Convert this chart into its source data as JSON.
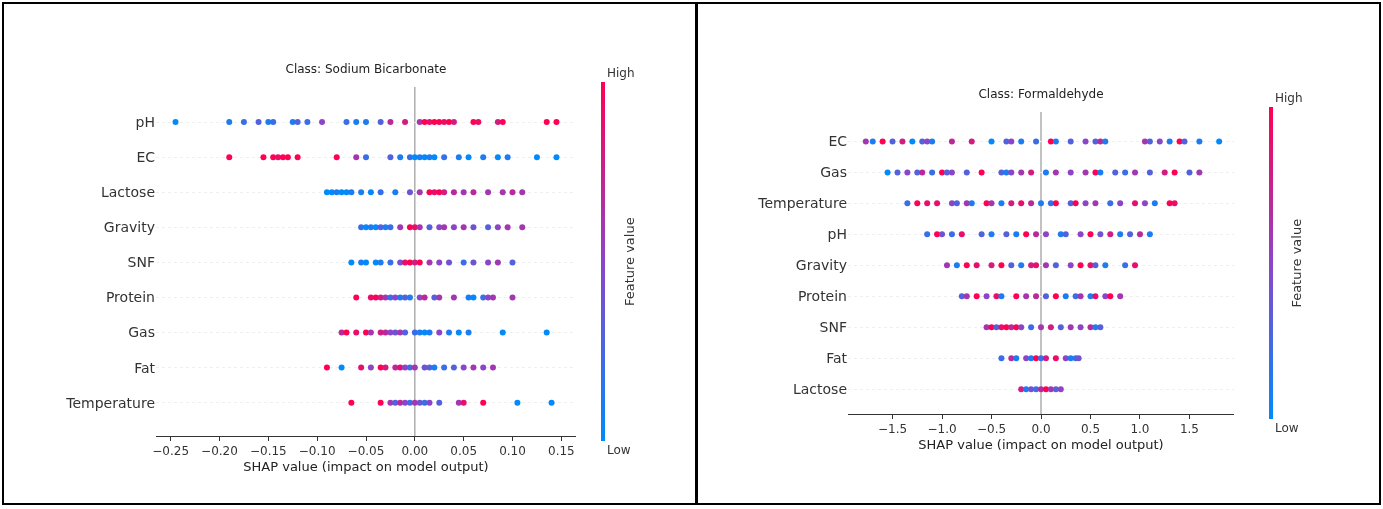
{
  "chart_data": [
    {
      "type": "scatter",
      "orientation": "horizontal",
      "title": "Class: Sodium Bicarbonate",
      "xlabel": "SHAP value (impact on model output)",
      "clabel": "Feature value",
      "annotations": [
        "High",
        "Low"
      ],
      "marker": "circle",
      "grid": "y",
      "xlim": [
        -0.265,
        0.165
      ],
      "xticks": [
        {
          "value": -0.25,
          "label": "−0.25"
        },
        {
          "value": -0.2,
          "label": "−0.20"
        },
        {
          "value": -0.15,
          "label": "−0.15"
        },
        {
          "value": -0.1,
          "label": "−0.10"
        },
        {
          "value": -0.05,
          "label": "−0.05"
        },
        {
          "value": 0,
          "label": "0.00"
        },
        {
          "value": 0.05,
          "label": "0.05"
        },
        {
          "value": 0.1,
          "label": "0.10"
        },
        {
          "value": 0.15,
          "label": "0.15"
        }
      ],
      "ref_lines": [
        {
          "axis": "x",
          "value": 0,
          "color": "#999999"
        }
      ],
      "categories": [
        "pH",
        "EC",
        "Lactose",
        "Gravity",
        "SNF",
        "Protein",
        "Gas",
        "Fat",
        "Temperature"
      ],
      "series": [
        {
          "x": [
            "pH",
            "pH",
            "pH",
            "pH",
            "pH",
            "pH",
            "pH",
            "pH",
            "pH",
            "pH",
            "pH",
            "pH",
            "pH",
            "pH",
            "pH",
            "pH",
            "pH",
            "pH",
            "pH",
            "pH",
            "pH",
            "pH",
            "pH",
            "pH",
            "pH",
            "pH",
            "pH",
            "pH",
            "pH",
            "pH"
          ],
          "values": [
            -0.245,
            -0.19,
            -0.175,
            -0.16,
            -0.15,
            -0.145,
            -0.125,
            -0.12,
            -0.11,
            -0.095,
            -0.07,
            -0.06,
            -0.05,
            -0.035,
            -0.025,
            -0.01,
            0.005,
            0.01,
            0.015,
            0.02,
            0.025,
            0.03,
            0.035,
            0.04,
            0.06,
            0.065,
            0.085,
            0.09,
            0.135,
            0.145
          ],
          "colors": [
            "#008afb",
            "#1c7cf1",
            "#386ee7",
            "#5461dc",
            "#1c7cf1",
            "#386ee7",
            "#1c7cf1",
            "#5461dc",
            "#386ee7",
            "#8c45c8",
            "#386ee7",
            "#1c7cf1",
            "#1c7cf1",
            "#5461dc",
            "#ba2999",
            "#d11c81",
            "#a337b0",
            "#ff0052",
            "#e80e6a",
            "#ff0052",
            "#ff0052",
            "#e80e6a",
            "#ff0052",
            "#d11c81",
            "#ff0052",
            "#e80e6a",
            "#d11c81",
            "#ff0052",
            "#ff0052",
            "#ff0052"
          ]
        },
        {
          "x": [
            "EC",
            "EC",
            "EC",
            "EC",
            "EC",
            "EC",
            "EC",
            "EC",
            "EC",
            "EC",
            "EC",
            "EC",
            "EC",
            "EC",
            "EC",
            "EC",
            "EC",
            "EC",
            "EC",
            "EC",
            "EC",
            "EC",
            "EC",
            "EC",
            "EC",
            "EC"
          ],
          "values": [
            -0.19,
            -0.155,
            -0.145,
            -0.14,
            -0.135,
            -0.13,
            -0.12,
            -0.08,
            -0.06,
            -0.05,
            -0.025,
            -0.015,
            -0.005,
            0,
            0.005,
            0.01,
            0.015,
            0.02,
            0.03,
            0.045,
            0.055,
            0.07,
            0.085,
            0.095,
            0.125,
            0.145
          ],
          "colors": [
            "#ff0052",
            "#ff0052",
            "#ff0052",
            "#e80e6a",
            "#ff0052",
            "#ff0052",
            "#ff0052",
            "#ff0052",
            "#a337b0",
            "#386ee7",
            "#5461dc",
            "#1c7cf1",
            "#386ee7",
            "#008afb",
            "#1c7cf1",
            "#008afb",
            "#1c7cf1",
            "#008afb",
            "#386ee7",
            "#1c7cf1",
            "#008afb",
            "#1c7cf1",
            "#008afb",
            "#1c7cf1",
            "#008afb",
            "#008afb"
          ]
        },
        {
          "x": [
            "Lactose",
            "Lactose",
            "Lactose",
            "Lactose",
            "Lactose",
            "Lactose",
            "Lactose",
            "Lactose",
            "Lactose",
            "Lactose",
            "Lactose",
            "Lactose",
            "Lactose",
            "Lactose",
            "Lactose",
            "Lactose",
            "Lactose",
            "Lactose",
            "Lactose",
            "Lactose",
            "Lactose",
            "Lactose",
            "Lactose"
          ],
          "values": [
            -0.09,
            -0.085,
            -0.08,
            -0.075,
            -0.07,
            -0.065,
            -0.055,
            -0.045,
            -0.035,
            -0.02,
            -0.005,
            0.005,
            0.015,
            0.02,
            0.025,
            0.03,
            0.04,
            0.05,
            0.06,
            0.075,
            0.09,
            0.1,
            0.11
          ],
          "colors": [
            "#008afb",
            "#008afb",
            "#1c7cf1",
            "#008afb",
            "#008afb",
            "#1c7cf1",
            "#1c7cf1",
            "#008afb",
            "#386ee7",
            "#1c7cf1",
            "#7053d2",
            "#a337b0",
            "#ff0052",
            "#e80e6a",
            "#ff0052",
            "#d11c81",
            "#ba2999",
            "#a337b0",
            "#ba2999",
            "#a337b0",
            "#a337b0",
            "#ba2999",
            "#a337b0"
          ]
        },
        {
          "x": [
            "Gravity",
            "Gravity",
            "Gravity",
            "Gravity",
            "Gravity",
            "Gravity",
            "Gravity",
            "Gravity",
            "Gravity",
            "Gravity",
            "Gravity",
            "Gravity",
            "Gravity",
            "Gravity",
            "Gravity",
            "Gravity",
            "Gravity",
            "Gravity",
            "Gravity",
            "Gravity",
            "Gravity"
          ],
          "values": [
            -0.055,
            -0.05,
            -0.045,
            -0.04,
            -0.035,
            -0.03,
            -0.025,
            -0.015,
            -0.005,
            0,
            0.005,
            0.015,
            0.025,
            0.03,
            0.04,
            0.05,
            0.06,
            0.075,
            0.085,
            0.095,
            0.11
          ],
          "colors": [
            "#386ee7",
            "#008afb",
            "#1c7cf1",
            "#008afb",
            "#5461dc",
            "#1c7cf1",
            "#386ee7",
            "#a337b0",
            "#ff0052",
            "#e80e6a",
            "#a337b0",
            "#5461dc",
            "#8c45c8",
            "#a337b0",
            "#8c45c8",
            "#a337b0",
            "#7053d2",
            "#5461dc",
            "#8c45c8",
            "#a337b0",
            "#a337b0"
          ]
        },
        {
          "x": [
            "SNF",
            "SNF",
            "SNF",
            "SNF",
            "SNF",
            "SNF",
            "SNF",
            "SNF",
            "SNF",
            "SNF",
            "SNF",
            "SNF",
            "SNF",
            "SNF",
            "SNF",
            "SNF",
            "SNF",
            "SNF",
            "SNF"
          ],
          "values": [
            -0.065,
            -0.055,
            -0.05,
            -0.04,
            -0.035,
            -0.025,
            -0.015,
            -0.01,
            -0.005,
            0,
            0.005,
            0.015,
            0.025,
            0.035,
            0.05,
            0.06,
            0.075,
            0.085,
            0.1
          ],
          "colors": [
            "#008afb",
            "#1c7cf1",
            "#008afb",
            "#008afb",
            "#1c7cf1",
            "#386ee7",
            "#7053d2",
            "#e80e6a",
            "#ff0052",
            "#d11c81",
            "#ff0052",
            "#a337b0",
            "#8c45c8",
            "#7053d2",
            "#386ee7",
            "#7053d2",
            "#8c45c8",
            "#a337b0",
            "#5461dc"
          ]
        },
        {
          "x": [
            "Protein",
            "Protein",
            "Protein",
            "Protein",
            "Protein",
            "Protein",
            "Protein",
            "Protein",
            "Protein",
            "Protein",
            "Protein",
            "Protein",
            "Protein",
            "Protein",
            "Protein",
            "Protein",
            "Protein",
            "Protein",
            "Protein",
            "Protein",
            "Protein"
          ],
          "values": [
            -0.06,
            -0.045,
            -0.04,
            -0.035,
            -0.03,
            -0.025,
            -0.02,
            -0.015,
            -0.01,
            -0.005,
            0.005,
            0.01,
            0.02,
            0.025,
            0.04,
            0.055,
            0.06,
            0.07,
            0.075,
            0.08,
            0.1
          ],
          "colors": [
            "#ff0052",
            "#e80e6a",
            "#ff0052",
            "#d11c81",
            "#a337b0",
            "#386ee7",
            "#8c45c8",
            "#1c7cf1",
            "#5461dc",
            "#1c7cf1",
            "#8c45c8",
            "#ba2999",
            "#5461dc",
            "#a337b0",
            "#a337b0",
            "#1c7cf1",
            "#008afb",
            "#386ee7",
            "#8c45c8",
            "#a337b0",
            "#a337b0"
          ]
        },
        {
          "x": [
            "Gas",
            "Gas",
            "Gas",
            "Gas",
            "Gas",
            "Gas",
            "Gas",
            "Gas",
            "Gas",
            "Gas",
            "Gas",
            "Gas",
            "Gas",
            "Gas",
            "Gas",
            "Gas",
            "Gas",
            "Gas",
            "Gas",
            "Gas",
            "Gas"
          ],
          "values": [
            -0.075,
            -0.07,
            -0.06,
            -0.05,
            -0.045,
            -0.035,
            -0.03,
            -0.025,
            -0.02,
            -0.015,
            -0.01,
            0,
            0.005,
            0.01,
            0.015,
            0.025,
            0.035,
            0.045,
            0.055,
            0.09,
            0.135
          ],
          "colors": [
            "#ba2999",
            "#ff0052",
            "#e80e6a",
            "#ff0052",
            "#a337b0",
            "#d11c81",
            "#ba2999",
            "#8c45c8",
            "#7053d2",
            "#a337b0",
            "#5461dc",
            "#386ee7",
            "#1c7cf1",
            "#008afb",
            "#1c7cf1",
            "#8c45c8",
            "#1c7cf1",
            "#008afb",
            "#1c7cf1",
            "#008afb",
            "#008afb"
          ]
        },
        {
          "x": [
            "Fat",
            "Fat",
            "Fat",
            "Fat",
            "Fat",
            "Fat",
            "Fat",
            "Fat",
            "Fat",
            "Fat",
            "Fat",
            "Fat",
            "Fat",
            "Fat",
            "Fat",
            "Fat",
            "Fat",
            "Fat",
            "Fat",
            "Fat"
          ],
          "values": [
            -0.09,
            -0.075,
            -0.055,
            -0.045,
            -0.035,
            -0.03,
            -0.02,
            -0.015,
            -0.01,
            -0.005,
            0,
            0.01,
            0.015,
            0.02,
            0.03,
            0.04,
            0.05,
            0.06,
            0.07,
            0.08
          ],
          "colors": [
            "#ff0052",
            "#008afb",
            "#e80e6a",
            "#8c45c8",
            "#ff0052",
            "#d11c81",
            "#ba2999",
            "#e80e6a",
            "#8c45c8",
            "#386ee7",
            "#a337b0",
            "#7053d2",
            "#5461dc",
            "#1c7cf1",
            "#386ee7",
            "#5461dc",
            "#8c45c8",
            "#a337b0",
            "#8c45c8",
            "#a337b0"
          ]
        },
        {
          "x": [
            "Temperature",
            "Temperature",
            "Temperature",
            "Temperature",
            "Temperature",
            "Temperature",
            "Temperature",
            "Temperature",
            "Temperature",
            "Temperature",
            "Temperature",
            "Temperature",
            "Temperature",
            "Temperature",
            "Temperature",
            "Temperature",
            "Temperature"
          ],
          "values": [
            -0.065,
            -0.035,
            -0.025,
            -0.02,
            -0.015,
            -0.01,
            -0.005,
            0,
            0.005,
            0.01,
            0.015,
            0.025,
            0.045,
            0.05,
            0.07,
            0.105,
            0.14
          ],
          "colors": [
            "#ff0052",
            "#ff0052",
            "#a337b0",
            "#5461dc",
            "#ba2999",
            "#8c45c8",
            "#386ee7",
            "#a337b0",
            "#7053d2",
            "#386ee7",
            "#8c45c8",
            "#5461dc",
            "#a337b0",
            "#e80e6a",
            "#ff0052",
            "#008afb",
            "#008afb"
          ]
        }
      ]
    },
    {
      "type": "scatter",
      "orientation": "horizontal",
      "title": "Class: Formaldehyde",
      "xlabel": "SHAP value (impact on model output)",
      "clabel": "Feature value",
      "annotations": [
        "High",
        "Low"
      ],
      "marker": "circle",
      "grid": "y",
      "xlim": [
        -1.95,
        1.95
      ],
      "xticks": [
        {
          "value": -1.5,
          "label": "−1.5"
        },
        {
          "value": -1,
          "label": "−1.0"
        },
        {
          "value": -0.5,
          "label": "−0.5"
        },
        {
          "value": 0,
          "label": "0.0"
        },
        {
          "value": 0.5,
          "label": "0.5"
        },
        {
          "value": 1,
          "label": "1.0"
        },
        {
          "value": 1.5,
          "label": "1.5"
        }
      ],
      "ref_lines": [
        {
          "axis": "x",
          "value": 0,
          "color": "#999999"
        }
      ],
      "categories": [
        "EC",
        "Gas",
        "Temperature",
        "pH",
        "Gravity",
        "Protein",
        "SNF",
        "Fat",
        "Lactose"
      ],
      "series": [
        {
          "x": [
            "EC",
            "EC",
            "EC",
            "EC",
            "EC",
            "EC",
            "EC",
            "EC",
            "EC",
            "EC",
            "EC",
            "EC",
            "EC",
            "EC",
            "EC",
            "EC",
            "EC",
            "EC",
            "EC",
            "EC",
            "EC",
            "EC",
            "EC",
            "EC",
            "EC",
            "EC",
            "EC",
            "EC",
            "EC",
            "EC",
            "EC"
          ],
          "values": [
            -1.77,
            -1.7,
            -1.6,
            -1.5,
            -1.4,
            -1.3,
            -1.2,
            -1.15,
            -1.1,
            -0.9,
            -0.7,
            -0.5,
            -0.35,
            -0.3,
            -0.2,
            -0.05,
            0.1,
            0.15,
            0.3,
            0.45,
            0.55,
            0.6,
            0.65,
            1.05,
            1.1,
            1.2,
            1.3,
            1.4,
            1.45,
            1.6,
            1.8
          ],
          "colors": [
            "#a337b0",
            "#1c7cf1",
            "#ff0052",
            "#5461dc",
            "#d11c81",
            "#008afb",
            "#5461dc",
            "#8c45c8",
            "#1c7cf1",
            "#ba2999",
            "#d11c81",
            "#008afb",
            "#5461dc",
            "#8c45c8",
            "#1c7cf1",
            "#386ee7",
            "#ff0052",
            "#1c7cf1",
            "#5461dc",
            "#8c45c8",
            "#5461dc",
            "#ba2999",
            "#1c7cf1",
            "#a337b0",
            "#5461dc",
            "#8c45c8",
            "#1c7cf1",
            "#ff0052",
            "#5461dc",
            "#1c7cf1",
            "#008afb"
          ]
        },
        {
          "x": [
            "Gas",
            "Gas",
            "Gas",
            "Gas",
            "Gas",
            "Gas",
            "Gas",
            "Gas",
            "Gas",
            "Gas",
            "Gas",
            "Gas",
            "Gas",
            "Gas",
            "Gas",
            "Gas",
            "Gas",
            "Gas",
            "Gas",
            "Gas",
            "Gas",
            "Gas",
            "Gas",
            "Gas",
            "Gas",
            "Gas",
            "Gas",
            "Gas",
            "Gas",
            "Gas"
          ],
          "values": [
            -1.55,
            -1.45,
            -1.35,
            -1.25,
            -1.2,
            -1.1,
            -1,
            -0.95,
            -0.9,
            -0.75,
            -0.6,
            -0.4,
            -0.35,
            -0.3,
            -0.2,
            -0.1,
            0.05,
            0.15,
            0.3,
            0.45,
            0.55,
            0.6,
            0.75,
            0.85,
            0.95,
            1.1,
            1.25,
            1.35,
            1.5,
            1.6
          ],
          "colors": [
            "#008afb",
            "#5461dc",
            "#8c45c8",
            "#5461dc",
            "#ba2999",
            "#386ee7",
            "#ff0052",
            "#5461dc",
            "#8c45c8",
            "#5461dc",
            "#ff0052",
            "#5461dc",
            "#1c7cf1",
            "#8c45c8",
            "#a337b0",
            "#d11c81",
            "#1c7cf1",
            "#a337b0",
            "#8c45c8",
            "#a337b0",
            "#ff0052",
            "#1c7cf1",
            "#5461dc",
            "#386ee7",
            "#a337b0",
            "#5461dc",
            "#d11c81",
            "#ff0052",
            "#5461dc",
            "#a337b0"
          ]
        },
        {
          "x": [
            "Temperature",
            "Temperature",
            "Temperature",
            "Temperature",
            "Temperature",
            "Temperature",
            "Temperature",
            "Temperature",
            "Temperature",
            "Temperature",
            "Temperature",
            "Temperature",
            "Temperature",
            "Temperature",
            "Temperature",
            "Temperature",
            "Temperature",
            "Temperature",
            "Temperature",
            "Temperature",
            "Temperature",
            "Temperature",
            "Temperature",
            "Temperature",
            "Temperature",
            "Temperature",
            "Temperature",
            "Temperature"
          ],
          "values": [
            -1.35,
            -1.25,
            -1.15,
            -1.05,
            -0.9,
            -0.85,
            -0.75,
            -0.7,
            -0.55,
            -0.5,
            -0.4,
            -0.3,
            -0.2,
            -0.1,
            0,
            0.1,
            0.15,
            0.3,
            0.35,
            0.45,
            0.55,
            0.7,
            0.8,
            0.95,
            1.05,
            1.15,
            1.3,
            1.35
          ],
          "colors": [
            "#386ee7",
            "#ff0052",
            "#e80e6a",
            "#e80e6a",
            "#8c45c8",
            "#5461dc",
            "#a337b0",
            "#1c7cf1",
            "#ff0052",
            "#a337b0",
            "#1c7cf1",
            "#d11c81",
            "#e80e6a",
            "#ba2999",
            "#1c7cf1",
            "#386ee7",
            "#ff0052",
            "#5461dc",
            "#ff0052",
            "#8c45c8",
            "#a337b0",
            "#386ee7",
            "#8c45c8",
            "#e80e6a",
            "#8c45c8",
            "#1c7cf1",
            "#ff0052",
            "#e80e6a"
          ]
        },
        {
          "x": [
            "pH",
            "pH",
            "pH",
            "pH",
            "pH",
            "pH",
            "pH",
            "pH",
            "pH",
            "pH",
            "pH",
            "pH",
            "pH",
            "pH",
            "pH",
            "pH",
            "pH",
            "pH",
            "pH",
            "pH",
            "pH",
            "pH"
          ],
          "values": [
            -1.15,
            -1.05,
            -1,
            -0.9,
            -0.8,
            -0.6,
            -0.5,
            -0.35,
            -0.25,
            -0.15,
            -0.05,
            0.05,
            0.2,
            0.25,
            0.4,
            0.5,
            0.6,
            0.7,
            0.8,
            0.9,
            1,
            1.1
          ],
          "colors": [
            "#386ee7",
            "#ff0052",
            "#7053d2",
            "#386ee7",
            "#e80e6a",
            "#5461dc",
            "#1c7cf1",
            "#5461dc",
            "#1c7cf1",
            "#ff0052",
            "#ba2999",
            "#8c45c8",
            "#1c7cf1",
            "#5461dc",
            "#8c45c8",
            "#ff0052",
            "#7053d2",
            "#d11c81",
            "#1c7cf1",
            "#5461dc",
            "#ba2999",
            "#1c7cf1"
          ]
        },
        {
          "x": [
            "Gravity",
            "Gravity",
            "Gravity",
            "Gravity",
            "Gravity",
            "Gravity",
            "Gravity",
            "Gravity",
            "Gravity",
            "Gravity",
            "Gravity",
            "Gravity",
            "Gravity",
            "Gravity",
            "Gravity",
            "Gravity",
            "Gravity",
            "Gravity",
            "Gravity"
          ],
          "values": [
            -0.95,
            -0.85,
            -0.75,
            -0.65,
            -0.5,
            -0.4,
            -0.3,
            -0.2,
            -0.1,
            -0.05,
            0.05,
            0.15,
            0.3,
            0.4,
            0.5,
            0.55,
            0.65,
            0.85,
            0.95
          ],
          "colors": [
            "#a337b0",
            "#1c7cf1",
            "#ff0052",
            "#e80e6a",
            "#d11c81",
            "#ff0052",
            "#5461dc",
            "#1c7cf1",
            "#d11c81",
            "#e80e6a",
            "#a337b0",
            "#5461dc",
            "#8c45c8",
            "#ff0052",
            "#e80e6a",
            "#5461dc",
            "#1c7cf1",
            "#386ee7",
            "#e80e6a"
          ]
        },
        {
          "x": [
            "Protein",
            "Protein",
            "Protein",
            "Protein",
            "Protein",
            "Protein",
            "Protein",
            "Protein",
            "Protein",
            "Protein",
            "Protein",
            "Protein",
            "Protein",
            "Protein",
            "Protein",
            "Protein",
            "Protein",
            "Protein",
            "Protein"
          ],
          "values": [
            -0.8,
            -0.75,
            -0.65,
            -0.55,
            -0.45,
            -0.4,
            -0.25,
            -0.15,
            -0.05,
            0.05,
            0.15,
            0.25,
            0.35,
            0.4,
            0.5,
            0.55,
            0.65,
            0.7,
            0.8
          ],
          "colors": [
            "#5461dc",
            "#a337b0",
            "#ff0052",
            "#8c45c8",
            "#e80e6a",
            "#1c7cf1",
            "#ff0052",
            "#a337b0",
            "#ba2999",
            "#5461dc",
            "#ff0052",
            "#1c7cf1",
            "#386ee7",
            "#a337b0",
            "#1c7cf1",
            "#e80e6a",
            "#8c45c8",
            "#ff0052",
            "#a337b0"
          ]
        },
        {
          "x": [
            "SNF",
            "SNF",
            "SNF",
            "SNF",
            "SNF",
            "SNF",
            "SNF",
            "SNF",
            "SNF",
            "SNF",
            "SNF",
            "SNF",
            "SNF",
            "SNF",
            "SNF",
            "SNF",
            "SNF"
          ],
          "values": [
            -0.55,
            -0.5,
            -0.45,
            -0.4,
            -0.35,
            -0.3,
            -0.25,
            -0.2,
            -0.1,
            0,
            0.1,
            0.2,
            0.3,
            0.4,
            0.5,
            0.55,
            0.6
          ],
          "colors": [
            "#a337b0",
            "#ff0052",
            "#5461dc",
            "#e80e6a",
            "#ff0052",
            "#ba2999",
            "#ff0052",
            "#8c45c8",
            "#386ee7",
            "#a337b0",
            "#d11c81",
            "#5461dc",
            "#a337b0",
            "#8c45c8",
            "#ba2999",
            "#1c7cf1",
            "#5461dc"
          ]
        },
        {
          "x": [
            "Fat",
            "Fat",
            "Fat",
            "Fat",
            "Fat",
            "Fat",
            "Fat",
            "Fat",
            "Fat",
            "Fat",
            "Fat",
            "Fat",
            "Fat"
          ],
          "values": [
            -0.4,
            -0.3,
            -0.25,
            -0.15,
            -0.1,
            -0.05,
            0,
            0.05,
            0.15,
            0.25,
            0.3,
            0.35,
            0.38
          ],
          "colors": [
            "#386ee7",
            "#ba2999",
            "#1c7cf1",
            "#8c45c8",
            "#1c7cf1",
            "#ff0052",
            "#386ee7",
            "#d11c81",
            "#e80e6a",
            "#8c45c8",
            "#1c7cf1",
            "#386ee7",
            "#7053d2"
          ]
        },
        {
          "x": [
            "Lactose",
            "Lactose",
            "Lactose",
            "Lactose",
            "Lactose",
            "Lactose",
            "Lactose",
            "Lactose",
            "Lactose"
          ],
          "values": [
            -0.2,
            -0.15,
            -0.1,
            -0.05,
            0,
            0.05,
            0.1,
            0.15,
            0.2
          ],
          "colors": [
            "#d11c81",
            "#1c7cf1",
            "#7053d2",
            "#386ee7",
            "#ba2999",
            "#ff0052",
            "#a337b0",
            "#5461dc",
            "#8c45c8"
          ]
        }
      ]
    }
  ]
}
